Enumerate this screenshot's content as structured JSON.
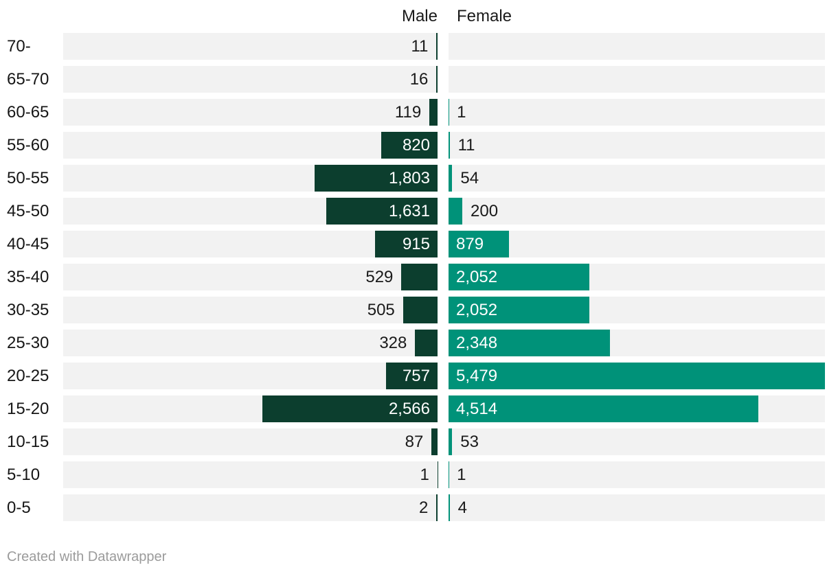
{
  "header": {
    "male_label": "Male",
    "female_label": "Female"
  },
  "footer": {
    "credit": "Created with Datawrapper"
  },
  "colors": {
    "male_bar": "#0c3e2e",
    "female_bar": "#009279",
    "track_background": "#f2f2f2",
    "label_dark": "#1a1a1a",
    "label_light": "#ffffff",
    "footer_text": "#9b9b9b"
  },
  "chart_data": {
    "type": "bar",
    "subtype": "population-pyramid",
    "title": "",
    "xlabel": "",
    "ylabel": "",
    "grid": false,
    "legend_position": "top",
    "axis_max": 5479,
    "categories": [
      "70-",
      "65-70",
      "60-65",
      "55-60",
      "50-55",
      "45-50",
      "40-45",
      "35-40",
      "30-35",
      "25-30",
      "20-25",
      "15-20",
      "10-15",
      "5-10",
      "0-5"
    ],
    "series": [
      {
        "name": "Male",
        "values": [
          11,
          16,
          119,
          820,
          1803,
          1631,
          915,
          529,
          505,
          328,
          757,
          2566,
          87,
          1,
          2
        ],
        "labels": [
          "11",
          "16",
          "119",
          "820",
          "1,803",
          "1,631",
          "915",
          "529",
          "505",
          "328",
          "757",
          "2,566",
          "87",
          "1",
          "2"
        ]
      },
      {
        "name": "Female",
        "values": [
          null,
          null,
          1,
          11,
          54,
          200,
          879,
          2052,
          2052,
          2348,
          5479,
          4514,
          53,
          1,
          4
        ],
        "labels": [
          "",
          "",
          "1",
          "11",
          "54",
          "200",
          "879",
          "2,052",
          "2,052",
          "2,348",
          "5,479",
          "4,514",
          "53",
          "1",
          "4"
        ]
      }
    ]
  }
}
